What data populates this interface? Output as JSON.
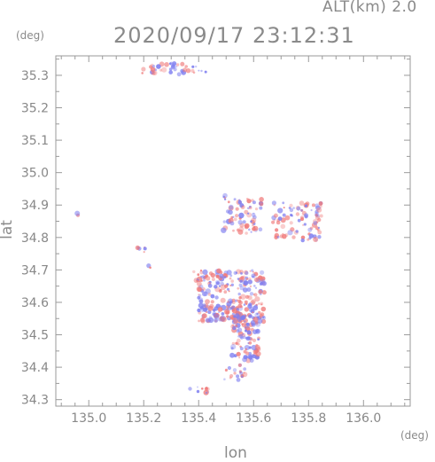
{
  "header": {
    "altitude_label": "ALT(km) 2.0",
    "timestamp": "2020/09/17 23:12:31",
    "y_unit": "(deg)",
    "x_unit": "(deg)"
  },
  "chart_data": {
    "type": "scatter",
    "xlabel": "lon",
    "ylabel": "lat",
    "xlim": [
      134.88,
      136.17
    ],
    "ylim": [
      34.28,
      35.36
    ],
    "x_ticks": [
      "135.0",
      "135.2",
      "135.4",
      "135.6",
      "135.8",
      "136.0"
    ],
    "y_ticks": [
      "34.3",
      "34.4",
      "34.5",
      "34.6",
      "34.7",
      "34.8",
      "34.9",
      "35.0",
      "35.1",
      "35.2",
      "35.3"
    ],
    "grid": false,
    "colors": {
      "positive": "#f07a7a",
      "negative": "#7f7ff0",
      "axis": "#9a9a9a"
    },
    "clusters": [
      {
        "lon": 135.3,
        "lat": 35.32,
        "w": 0.26,
        "h": 0.035,
        "n": 40
      },
      {
        "lon": 134.96,
        "lat": 34.87,
        "w": 0.01,
        "h": 0.01,
        "n": 2
      },
      {
        "lon": 135.19,
        "lat": 34.76,
        "w": 0.03,
        "h": 0.02,
        "n": 6
      },
      {
        "lon": 135.22,
        "lat": 34.71,
        "w": 0.01,
        "h": 0.01,
        "n": 2
      },
      {
        "lon": 135.56,
        "lat": 34.87,
        "w": 0.14,
        "h": 0.12,
        "n": 70
      },
      {
        "lon": 135.76,
        "lat": 34.85,
        "w": 0.18,
        "h": 0.12,
        "n": 90
      },
      {
        "lon": 135.52,
        "lat": 34.62,
        "w": 0.24,
        "h": 0.16,
        "n": 260
      },
      {
        "lon": 135.57,
        "lat": 34.49,
        "w": 0.1,
        "h": 0.14,
        "n": 110
      },
      {
        "lon": 135.53,
        "lat": 34.38,
        "w": 0.08,
        "h": 0.06,
        "n": 20
      },
      {
        "lon": 135.4,
        "lat": 34.33,
        "w": 0.08,
        "h": 0.02,
        "n": 10
      },
      {
        "lon": 135.4,
        "lat": 34.68,
        "w": 0.04,
        "h": 0.04,
        "n": 8
      },
      {
        "lon": 135.42,
        "lat": 34.59,
        "w": 0.04,
        "h": 0.04,
        "n": 6
      }
    ]
  }
}
